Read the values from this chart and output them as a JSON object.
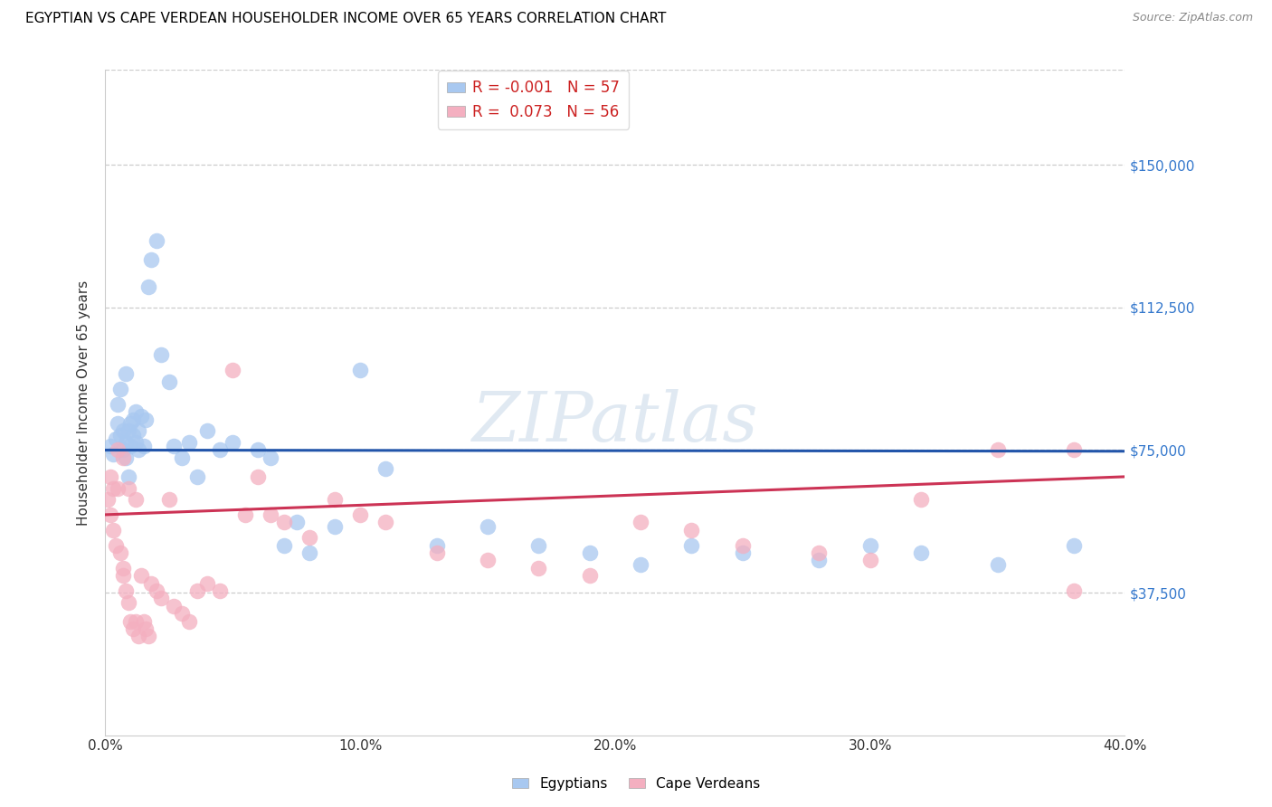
{
  "title": "EGYPTIAN VS CAPE VERDEAN HOUSEHOLDER INCOME OVER 65 YEARS CORRELATION CHART",
  "source": "Source: ZipAtlas.com",
  "ylabel": "Householder Income Over 65 years",
  "xlim": [
    0.0,
    0.4
  ],
  "ylim": [
    0,
    175000
  ],
  "yticks": [
    0,
    37500,
    75000,
    112500,
    150000
  ],
  "ytick_labels": [
    "",
    "$37,500",
    "$75,000",
    "$112,500",
    "$150,000"
  ],
  "xticks": [
    0.0,
    0.1,
    0.2,
    0.3,
    0.4
  ],
  "xtick_labels": [
    "0.0%",
    "10.0%",
    "20.0%",
    "30.0%",
    "40.0%"
  ],
  "watermark": "ZIPatlas",
  "legend_R1": "-0.001",
  "legend_N1": "57",
  "legend_R2": "0.073",
  "legend_N2": "56",
  "color_egyptian": "#a8c8f0",
  "color_cape_verdean": "#f4afc0",
  "line_color_egyptian": "#2255aa",
  "line_color_cape_verdean": "#cc3355",
  "eg_x": [
    0.002,
    0.003,
    0.004,
    0.005,
    0.006,
    0.007,
    0.007,
    0.008,
    0.008,
    0.009,
    0.009,
    0.01,
    0.01,
    0.011,
    0.011,
    0.012,
    0.012,
    0.013,
    0.013,
    0.014,
    0.015,
    0.016,
    0.017,
    0.018,
    0.02,
    0.022,
    0.025,
    0.027,
    0.03,
    0.033,
    0.036,
    0.04,
    0.045,
    0.05,
    0.06,
    0.065,
    0.07,
    0.075,
    0.08,
    0.09,
    0.1,
    0.11,
    0.13,
    0.15,
    0.17,
    0.19,
    0.21,
    0.23,
    0.25,
    0.28,
    0.3,
    0.32,
    0.35,
    0.38,
    0.005,
    0.006,
    0.008
  ],
  "eg_y": [
    76000,
    74000,
    78000,
    82000,
    79000,
    75000,
    80000,
    73000,
    77000,
    68000,
    80000,
    76000,
    82000,
    79000,
    83000,
    77000,
    85000,
    75000,
    80000,
    84000,
    76000,
    83000,
    118000,
    125000,
    130000,
    100000,
    93000,
    76000,
    73000,
    77000,
    68000,
    80000,
    75000,
    77000,
    75000,
    73000,
    50000,
    56000,
    48000,
    55000,
    96000,
    70000,
    50000,
    55000,
    50000,
    48000,
    45000,
    50000,
    48000,
    46000,
    50000,
    48000,
    45000,
    50000,
    87000,
    91000,
    95000
  ],
  "cv_x": [
    0.001,
    0.002,
    0.003,
    0.004,
    0.005,
    0.006,
    0.007,
    0.007,
    0.008,
    0.009,
    0.01,
    0.011,
    0.012,
    0.013,
    0.014,
    0.015,
    0.016,
    0.017,
    0.018,
    0.02,
    0.022,
    0.025,
    0.027,
    0.03,
    0.033,
    0.036,
    0.04,
    0.045,
    0.05,
    0.055,
    0.06,
    0.065,
    0.07,
    0.08,
    0.09,
    0.1,
    0.11,
    0.13,
    0.15,
    0.17,
    0.19,
    0.21,
    0.23,
    0.25,
    0.28,
    0.3,
    0.32,
    0.35,
    0.38,
    0.002,
    0.003,
    0.005,
    0.007,
    0.009,
    0.012,
    0.38
  ],
  "cv_y": [
    62000,
    58000,
    54000,
    50000,
    65000,
    48000,
    44000,
    42000,
    38000,
    35000,
    30000,
    28000,
    30000,
    26000,
    42000,
    30000,
    28000,
    26000,
    40000,
    38000,
    36000,
    62000,
    34000,
    32000,
    30000,
    38000,
    40000,
    38000,
    96000,
    58000,
    68000,
    58000,
    56000,
    52000,
    62000,
    58000,
    56000,
    48000,
    46000,
    44000,
    42000,
    56000,
    54000,
    50000,
    48000,
    46000,
    62000,
    75000,
    38000,
    68000,
    65000,
    75000,
    73000,
    65000,
    62000,
    75000
  ],
  "eg_trend_x": [
    0.0,
    0.4
  ],
  "eg_trend_y": [
    75000,
    74700
  ],
  "cv_trend_x": [
    0.0,
    0.4
  ],
  "cv_trend_y": [
    58000,
    68000
  ]
}
